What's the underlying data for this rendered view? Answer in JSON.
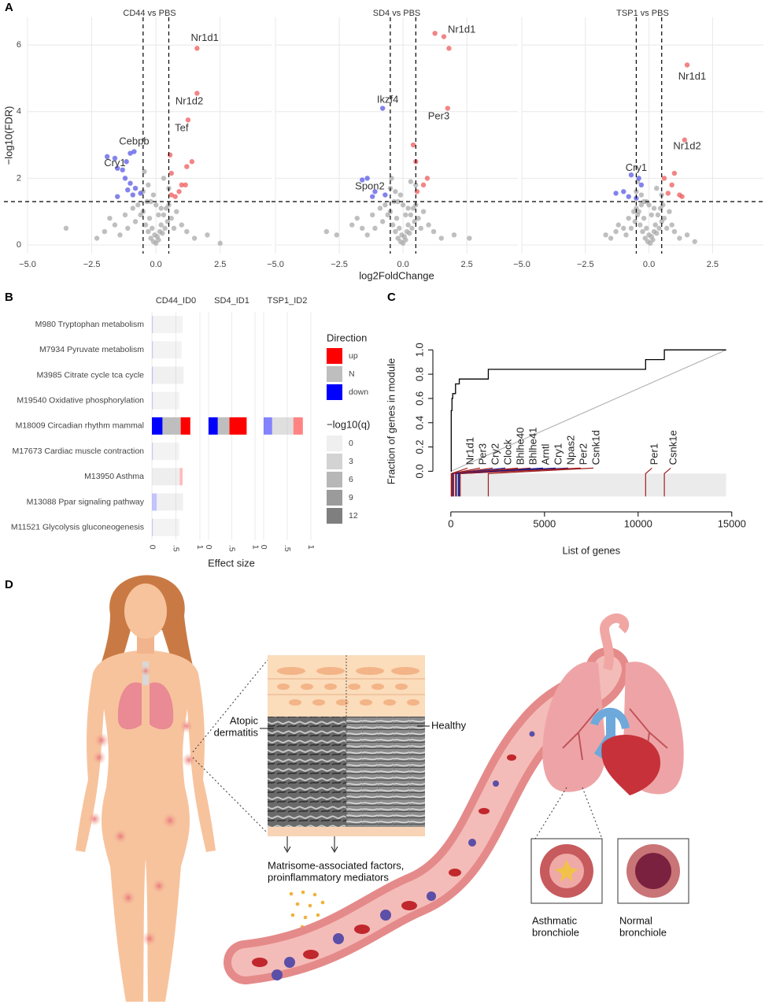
{
  "panel_labels": [
    "A",
    "B",
    "C",
    "D"
  ],
  "chart_data": [
    {
      "type": "scatter",
      "title": "CD44 vs PBS",
      "ylabel": "−log10(FDR)",
      "xlim": [
        -5,
        4.5
      ],
      "ylim": [
        -0.26,
        6.83
      ],
      "xticks": [
        {
          "value": -5,
          "label": "−5.0"
        },
        {
          "value": -2.5,
          "label": "−2.5"
        },
        {
          "value": 0,
          "label": "0.0"
        },
        2.5
      ],
      "yticks": [
        0,
        2,
        4,
        6
      ],
      "ytick_labels": true,
      "grid": true,
      "threshold_x": [
        -0.5,
        0.5
      ],
      "threshold_y": 1.3,
      "series": [
        {
          "color": "#a9a9a9",
          "x": [
            -3.5,
            -2.3,
            -2,
            -1.8,
            -1.6,
            -1.4,
            -1.2,
            -1.1,
            -0.9,
            -0.8,
            -0.7,
            -0.6,
            -0.5,
            -0.4,
            -0.35,
            -0.3,
            -0.25,
            -0.2,
            -0.15,
            -0.1,
            -0.05,
            0,
            0.05,
            0.1,
            0.15,
            0.2,
            0.25,
            0.3,
            0.35,
            0.4,
            0.45,
            0.5,
            0.6,
            0.7,
            0.8,
            1.0,
            1.2,
            1.5,
            2.0,
            2.5,
            -0.3,
            0.3,
            -0.1,
            0.1,
            0,
            -0.5,
            0.5,
            -0.45,
            0.2,
            -0.2
          ],
          "values": [
            0.5,
            0.2,
            0.4,
            0.8,
            0.6,
            0.3,
            0.9,
            0.5,
            1.1,
            0.7,
            1.2,
            0.9,
            1.0,
            0.6,
            1.3,
            0.4,
            0.8,
            0.2,
            0.5,
            0.1,
            0.3,
            0.05,
            0.25,
            0.15,
            0.4,
            0.6,
            0.35,
            0.9,
            0.5,
            1.1,
            0.7,
            1.2,
            0.8,
            0.5,
            1.0,
            0.6,
            0.4,
            0.2,
            0.3,
            0.05,
            1.8,
            2.0,
            1.5,
            0.9,
            1.2,
            1.6,
            1.7,
            2.2,
            1.1,
            1.3
          ]
        },
        {
          "color": "#ee5c5c",
          "x": [
            1.6,
            1.6,
            1.25,
            1.4,
            1.2,
            0.55,
            0.6,
            1.0,
            1.15,
            0.6,
            0.75,
            0.9
          ],
          "values": [
            5.9,
            4.55,
            3.75,
            2.5,
            2.35,
            2.7,
            2.15,
            1.8,
            1.8,
            1.5,
            1.45,
            1.6
          ]
        },
        {
          "color": "#5a5ae6",
          "x": [
            -1.0,
            -0.85,
            -1.15,
            -1.6,
            -1.9,
            -1.5,
            -1.3,
            -1.2,
            -1.0,
            -0.8,
            -1.1,
            -0.6,
            -1.5,
            -0.9
          ],
          "values": [
            2.75,
            2.8,
            2.5,
            2.6,
            2.65,
            2.3,
            2.25,
            2.0,
            1.85,
            1.7,
            1.65,
            1.55,
            1.45,
            1.5
          ]
        }
      ],
      "annotations": [
        {
          "text": "Nr1d1",
          "x": 1.9,
          "y": 6.2,
          "color": "#cc1f1f"
        },
        {
          "text": "Nr1d2",
          "x": 1.3,
          "y": 4.3,
          "color": "#cc1f1f"
        },
        {
          "text": "Tef",
          "x": 1.0,
          "y": 3.5,
          "color": "#cc1f1f"
        },
        {
          "text": "Cebpb",
          "x": -0.85,
          "y": 3.1,
          "color": "#2a2aa8"
        },
        {
          "text": "Cry1",
          "x": -1.6,
          "y": 2.45,
          "color": "#2a2aa8"
        }
      ]
    },
    {
      "type": "scatter",
      "title": "SD4 vs PBS",
      "xlabel": "log2FoldChange",
      "xlim": [
        -5,
        4.5
      ],
      "ylim": [
        -0.26,
        6.83
      ],
      "xticks": [
        {
          "value": -5,
          "label": "−5.0"
        },
        {
          "value": -2.5,
          "label": "−2.5"
        },
        {
          "value": 0,
          "label": "0.0"
        },
        2.5
      ],
      "yticks": [
        0,
        2,
        4,
        6
      ],
      "ytick_labels": false,
      "grid": true,
      "threshold_x": [
        -0.5,
        0.5
      ],
      "threshold_y": 1.3,
      "series": [
        {
          "color": "#a9a9a9",
          "x": [
            -3.0,
            -2.6,
            -2,
            -1.8,
            -1.6,
            -1.4,
            -1.2,
            -1.1,
            -0.9,
            -0.8,
            -0.7,
            -0.6,
            -0.5,
            -0.4,
            -0.35,
            -0.3,
            -0.25,
            -0.2,
            -0.15,
            -0.1,
            -0.05,
            0,
            0.05,
            0.1,
            0.15,
            0.2,
            0.25,
            0.3,
            0.35,
            0.4,
            0.45,
            0.5,
            0.6,
            0.7,
            0.8,
            1.0,
            1.2,
            1.5,
            2.0,
            2.6,
            -0.3,
            0.3,
            -0.1,
            0.1,
            0,
            -0.5,
            0.5,
            -0.45,
            0.2,
            -0.2
          ],
          "values": [
            0.4,
            0.3,
            0.6,
            0.8,
            0.5,
            0.3,
            0.9,
            0.5,
            1.1,
            0.7,
            1.2,
            0.9,
            1.0,
            0.6,
            1.3,
            0.4,
            0.8,
            0.2,
            0.5,
            0.1,
            0.3,
            0.05,
            0.25,
            0.15,
            0.4,
            0.6,
            0.35,
            0.9,
            0.5,
            1.1,
            0.7,
            1.2,
            0.8,
            0.5,
            1.0,
            0.6,
            0.4,
            0.2,
            0.3,
            0.2,
            1.6,
            1.9,
            1.5,
            0.9,
            1.2,
            1.7,
            1.8,
            2.0,
            1.1,
            1.3
          ]
        },
        {
          "color": "#ee5c5c",
          "x": [
            1.25,
            1.6,
            1.8,
            1.75,
            0.4,
            0.5,
            0.95,
            0.8,
            0.55
          ],
          "values": [
            6.35,
            6.25,
            5.9,
            4.1,
            3.0,
            2.5,
            2.0,
            1.8,
            1.6
          ]
        },
        {
          "color": "#5a5ae6",
          "x": [
            -0.8,
            -1.4,
            -1.6,
            -1.1,
            -0.7,
            -1.2
          ],
          "values": [
            4.1,
            2.0,
            1.95,
            1.6,
            1.5,
            1.45
          ]
        }
      ],
      "annotations": [
        {
          "text": "Nr1d1",
          "x": 2.3,
          "y": 6.45,
          "color": "#cc1f1f"
        },
        {
          "text": "Ikzf4",
          "x": -0.6,
          "y": 4.35,
          "color": "#2a2aa8"
        },
        {
          "text": "Per3",
          "x": 1.4,
          "y": 3.85,
          "color": "#cc1f1f"
        },
        {
          "text": "Spon2",
          "x": -1.3,
          "y": 1.75,
          "color": "#2a2aa8"
        }
      ]
    },
    {
      "type": "scatter",
      "title": "TSP1 vs PBS",
      "xlim": [
        -5,
        4.5
      ],
      "ylim": [
        -0.26,
        6.83
      ],
      "xticks": [
        {
          "value": -5,
          "label": "−5.0"
        },
        {
          "value": -2.5,
          "label": "−2.5"
        },
        {
          "value": 0,
          "label": "0.0"
        },
        2.5
      ],
      "yticks": [
        0,
        2,
        4,
        6
      ],
      "ytick_labels": false,
      "grid": true,
      "threshold_x": [
        -0.5,
        0.5
      ],
      "threshold_y": 1.3,
      "series": [
        {
          "color": "#a9a9a9",
          "x": [
            -1.7,
            -1.5,
            -1.3,
            -1.2,
            -1.0,
            -0.9,
            -0.8,
            -0.7,
            -0.6,
            -0.55,
            -0.5,
            -0.45,
            -0.4,
            -0.35,
            -0.3,
            -0.25,
            -0.2,
            -0.15,
            -0.1,
            -0.05,
            0,
            0.05,
            0.1,
            0.15,
            0.2,
            0.25,
            0.3,
            0.35,
            0.4,
            0.45,
            0.5,
            0.55,
            0.6,
            0.7,
            0.8,
            0.9,
            1.0,
            1.2,
            1.5,
            1.8,
            -0.3,
            0.3,
            -0.1,
            0.1,
            0,
            -0.5,
            0.5,
            -0.45,
            0.2,
            -0.2
          ],
          "values": [
            0.3,
            0.2,
            0.4,
            0.6,
            0.5,
            0.3,
            0.8,
            0.5,
            1.0,
            0.7,
            1.1,
            0.9,
            1.0,
            0.6,
            1.2,
            0.4,
            0.8,
            0.2,
            0.5,
            0.1,
            0.3,
            0.05,
            0.25,
            0.15,
            0.4,
            0.6,
            0.35,
            0.9,
            0.5,
            1.1,
            0.7,
            1.2,
            0.8,
            0.5,
            1.0,
            0.6,
            0.4,
            0.2,
            0.3,
            0.1,
            1.5,
            1.7,
            1.3,
            0.9,
            1.2,
            1.6,
            1.5,
            1.9,
            1.1,
            1.3
          ]
        },
        {
          "color": "#ee5c5c",
          "x": [
            1.5,
            1.4,
            1.0,
            0.6,
            0.9,
            0.75,
            1.2,
            1.3
          ],
          "values": [
            5.4,
            3.15,
            2.15,
            2.0,
            1.8,
            1.55,
            1.5,
            1.45
          ]
        },
        {
          "color": "#5a5ae6",
          "x": [
            -0.7,
            -0.4,
            -0.3,
            -1.0,
            -1.3,
            -0.8,
            -0.5
          ],
          "values": [
            2.1,
            2.0,
            1.8,
            1.6,
            1.55,
            1.45,
            1.4
          ]
        }
      ],
      "annotations": [
        {
          "text": "Nr1d1",
          "x": 1.7,
          "y": 5.05,
          "color": "#cc1f1f"
        },
        {
          "text": "Nr1d2",
          "x": 1.5,
          "y": 2.95,
          "color": "#cc1f1f"
        },
        {
          "text": "Cry1",
          "x": -0.5,
          "y": 2.3,
          "color": "#2a2aa8"
        }
      ]
    },
    {
      "type": "facet-bar",
      "xlabel": "Effect size",
      "rows": [
        "M980 Tryptophan metabolism",
        "M7934 Pyruvate metabolism",
        "M3985 Citrate cycle tca cycle",
        "M19540 Oxidative phosphorylation",
        "M18009 Circadian rhythm mammal",
        "M17673 Cardiac muscle contraction",
        "M13950 Asthma",
        "M13088 Ppar signaling pathway",
        "M11521 Glycolysis gluconeogenesis"
      ],
      "directions": [
        {
          "name": "down",
          "color": "#0000ff"
        },
        {
          "name": "N",
          "color": "#bebebe"
        },
        {
          "name": "up",
          "color": "#ff0000"
        }
      ],
      "direction_title": "Direction",
      "q_title": "−log10(q)",
      "q_levels": [
        0,
        3,
        6,
        9,
        12
      ],
      "facets": [
        {
          "title": "CD44_ID0",
          "xlim": [
            -0.05,
            1.05
          ],
          "xticks": [
            0,
            {
              "value": 0.5,
              "label": ".5"
            },
            1
          ],
          "segments": [
            [
              0.02,
              0.02,
              0.02,
              0.02,
              0.22,
              0.02,
              0,
              0.1,
              0.02
            ],
            [
              0.62,
              0.6,
              0.64,
              0.55,
              0.38,
              0.55,
              0.58,
              0.55,
              0.55
            ],
            [
              0,
              0,
              0,
              0,
              0.2,
              0,
              0.06,
              0,
              0
            ]
          ],
          "q": [
            1,
            1,
            1.5,
            1,
            12,
            1,
            2,
            1.5,
            1
          ]
        },
        {
          "title": "SD4_ID1",
          "xlim": [
            -0.05,
            1.05
          ],
          "xticks": [
            0,
            {
              "value": 0.5,
              "label": ".5"
            },
            1
          ],
          "segments": [
            [
              0,
              0,
              0,
              0,
              0.2,
              0,
              0,
              0,
              0
            ],
            [
              0,
              0,
              0,
              0,
              0.25,
              0,
              0,
              0,
              0
            ],
            [
              0,
              0,
              0,
              0,
              0.37,
              0,
              0,
              0,
              0
            ]
          ],
          "q": [
            0,
            0,
            0,
            0,
            12,
            0,
            0,
            0,
            0
          ]
        },
        {
          "title": "TSP1_ID2",
          "xlim": [
            -0.05,
            1.05
          ],
          "xticks": [
            0,
            {
              "value": 0.5,
              "label": ".5"
            },
            1
          ],
          "segments": [
            [
              0,
              0,
              0,
              0,
              0.18,
              0,
              0,
              0,
              0
            ],
            [
              0,
              0,
              0,
              0,
              0.45,
              0,
              0,
              0,
              0
            ],
            [
              0,
              0,
              0,
              0,
              0.2,
              0,
              0,
              0,
              0
            ]
          ],
          "q": [
            0,
            0,
            0,
            0,
            5,
            0,
            0,
            0,
            0
          ]
        }
      ]
    },
    {
      "type": "step",
      "xlabel": "List of genes",
      "ylabel": "Fraction of genes in module",
      "xlim": [
        -750,
        15850
      ],
      "ylim": [
        -0.27,
        1.08
      ],
      "xticks": [
        0,
        5000,
        10000,
        15000
      ],
      "yticks": [
        {
          "value": 0,
          "label": "0.0"
        },
        0.2,
        0.4,
        0.6,
        0.8,
        {
          "value": 1,
          "label": "1.0"
        }
      ],
      "curve": {
        "color": "#000000",
        "x": [
          0,
          20,
          20,
          60,
          60,
          100,
          100,
          250,
          250,
          450,
          450,
          2000,
          2000,
          10400,
          10400,
          11400,
          11400,
          14700
        ],
        "values": [
          0,
          0,
          0.5,
          0.5,
          0.6,
          0.6,
          0.64,
          0.64,
          0.72,
          0.72,
          0.76,
          0.76,
          0.84,
          0.84,
          0.92,
          0.92,
          1,
          1
        ]
      },
      "reference": {
        "color": "#aaaaaa",
        "x": [
          0,
          14700
        ],
        "values": [
          0,
          1
        ]
      },
      "genes": [
        "Nr1d1",
        "Per3",
        "Cry2",
        "Clock",
        "Bhlhe40",
        "Bhlhe41",
        "Arntl",
        "Cry1",
        "Npas2",
        "Per2",
        "Csnk1d",
        "Per1",
        "Csnk1e"
      ],
      "gene_x": [
        20,
        40,
        60,
        100,
        150,
        250,
        300,
        400,
        450,
        500,
        2000,
        10400,
        11400
      ],
      "gene_colors": [
        "#a01e1e",
        "#a01e1e",
        "#a01e1e",
        "#1e1e8c",
        "#a01e1e",
        "#a01e1e",
        "#1e1e8c",
        "#1e1e8c",
        "#1e1e8c",
        "#a01e1e",
        "#a01e1e",
        "#a01e1e",
        "#a01e1e"
      ]
    }
  ],
  "diagram": {
    "atopic_dermatitis": [
      "Atopic",
      "dermatitis"
    ],
    "healthy": "Healthy",
    "mediators": [
      "Matrisome-associated factors,",
      "proinflammatory mediators"
    ],
    "asthmatic": [
      "Asthmatic",
      "bronchiole"
    ],
    "normal": [
      "Normal",
      "bronchiole"
    ]
  }
}
